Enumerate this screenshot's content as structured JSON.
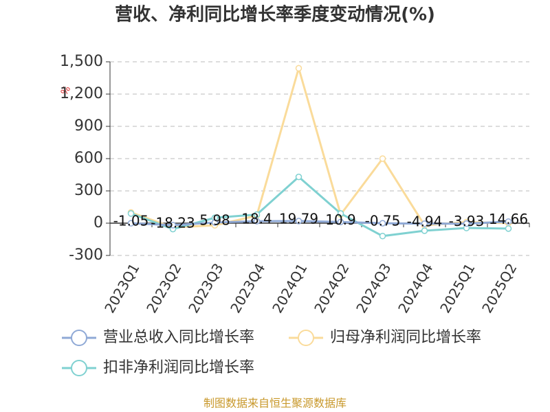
{
  "chart_data": {
    "type": "line",
    "title": "营收、净利同比增长率季度变动情况(%)",
    "y_unit": "%",
    "categories": [
      "2023Q1",
      "2023Q2",
      "2023Q3",
      "2023Q4",
      "2024Q1",
      "2024Q2",
      "2024Q3",
      "2024Q4",
      "2025Q1",
      "2025Q2"
    ],
    "series": [
      {
        "name": "营业总收入同比增长率",
        "color": "#8fa9d6",
        "values": [
          -1.05,
          -18.23,
          5.98,
          18.4,
          19.79,
          10.9,
          -0.75,
          -4.94,
          -3.93,
          14.66
        ]
      },
      {
        "name": "归母净利润同比增长率",
        "color": "#fadb9a",
        "values": [
          100,
          -40,
          -20,
          70,
          1440,
          80,
          600,
          -20,
          10,
          0
        ]
      },
      {
        "name": "扣非净利润同比增长率",
        "color": "#7fd1d1",
        "values": [
          90,
          -55,
          50,
          80,
          430,
          90,
          -120,
          -70,
          -45,
          -50
        ]
      }
    ],
    "ylim": [
      -300,
      1500
    ],
    "yticks": [
      -300,
      0,
      300,
      600,
      900,
      {
        "value": 1200,
        "label": "1,200"
      },
      {
        "value": 1500,
        "label": "1,500"
      }
    ],
    "grid": true,
    "source": "制图数据来自恒生聚源数据库"
  }
}
